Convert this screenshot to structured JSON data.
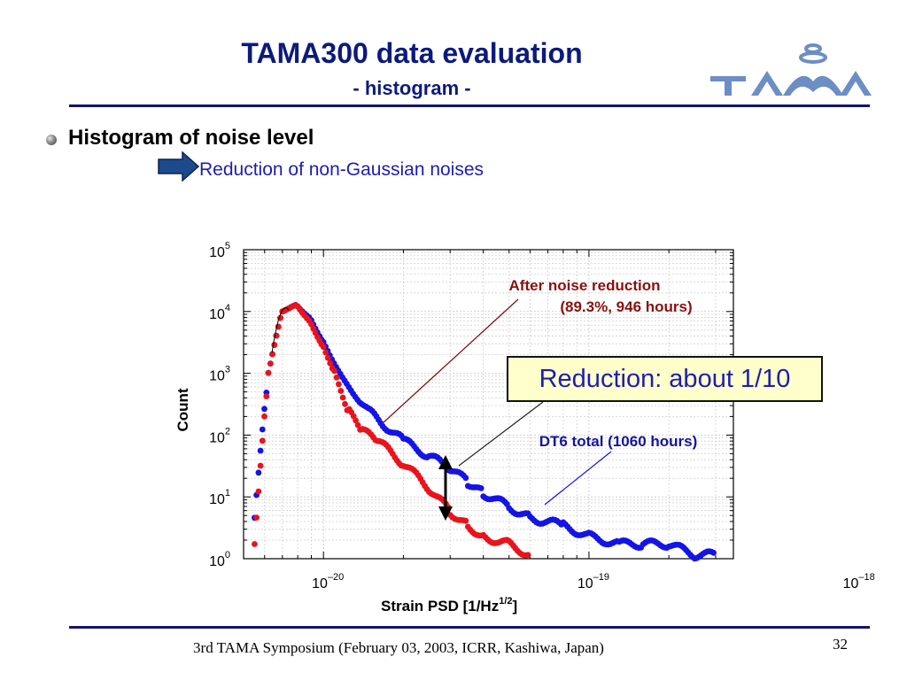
{
  "slide": {
    "title": "TAMA300 data evaluation",
    "subtitle": "- histogram -",
    "bullet": "Histogram of noise level",
    "sub_bullet": "Reduction of non-Gaussian noises",
    "footer": "3rd TAMA Symposium (February 03, 2003, ICRR, Kashiwa, Japan)",
    "page_number": "32",
    "logo_text": "TAMA"
  },
  "colors": {
    "title": "#0c1a7e",
    "accent_blue": "#1d1db4",
    "series_red": "#e8141c",
    "series_blue": "#1414e6",
    "annotation_dark_red": "#8a1010",
    "callout_bg": "#ffffcc",
    "logo": "#6c8ec4"
  },
  "chart_data": {
    "type": "scatter",
    "title": "",
    "xlabel": "Strain PSD  [1/Hz",
    "xlabel_exponent": "1/2",
    "xlabel_suffix": "]",
    "ylabel": "Count",
    "x_scale": "log",
    "y_scale": "log",
    "xlim": [
      5e-21,
      3.5e-19
    ],
    "ylim": [
      1,
      100000
    ],
    "x_ticks": [
      {
        "base": "10",
        "exp": "–20",
        "value": 1e-20
      },
      {
        "base": "10",
        "exp": "–19",
        "value": 1e-19
      },
      {
        "base": "10",
        "exp": "–18",
        "value": 1e-18
      }
    ],
    "y_ticks": [
      {
        "base": "10",
        "exp": "0",
        "value": 1
      },
      {
        "base": "10",
        "exp": "1",
        "value": 10
      },
      {
        "base": "10",
        "exp": "2",
        "value": 100
      },
      {
        "base": "10",
        "exp": "3",
        "value": 1000
      },
      {
        "base": "10",
        "exp": "4",
        "value": 10000
      },
      {
        "base": "10",
        "exp": "5",
        "value": 100000
      }
    ],
    "grid": true,
    "series": [
      {
        "name": "DT6 total (1060 hours)",
        "color": "#1414e6",
        "x": [
          5.5e-21,
          6.2e-21,
          7e-21,
          8e-21,
          9e-21,
          1e-20,
          1.2e-20,
          1.5e-20,
          2e-20,
          2.5e-20,
          3e-20,
          3.5e-20,
          4e-20,
          5e-20,
          6e-20,
          8e-20,
          1e-19,
          1.3e-19,
          1.6e-19,
          2e-19,
          2.5e-19,
          3e-19
        ],
        "y": [
          4,
          1000,
          10000,
          12000,
          7000,
          3000,
          700,
          200,
          70,
          40,
          25,
          15,
          10,
          6,
          4,
          3,
          2,
          1.5,
          1.5,
          1.5,
          1,
          1
        ]
      },
      {
        "name": "After noise reduction (89.3%, 946 hours)",
        "color": "#e8141c",
        "x": [
          5.5e-21,
          6.2e-21,
          7e-21,
          8e-21,
          9e-21,
          1e-20,
          1.1e-20,
          1.25e-20,
          1.4e-20,
          1.6e-20,
          2e-20,
          2.5e-20,
          3e-20,
          3.5e-20,
          4e-20,
          5e-20,
          6e-20
        ],
        "y": [
          1.5,
          1000,
          10000,
          12000,
          6000,
          2500,
          1000,
          200,
          100,
          70,
          30,
          12,
          5,
          3,
          2,
          1.5,
          1
        ]
      }
    ],
    "annotations": {
      "after_label_line1": "After noise reduction",
      "after_label_line2": "(89.3%, 946 hours)",
      "dt6_label": "DT6 total (1060 hours)",
      "callout": "Reduction: about 1/10"
    }
  }
}
